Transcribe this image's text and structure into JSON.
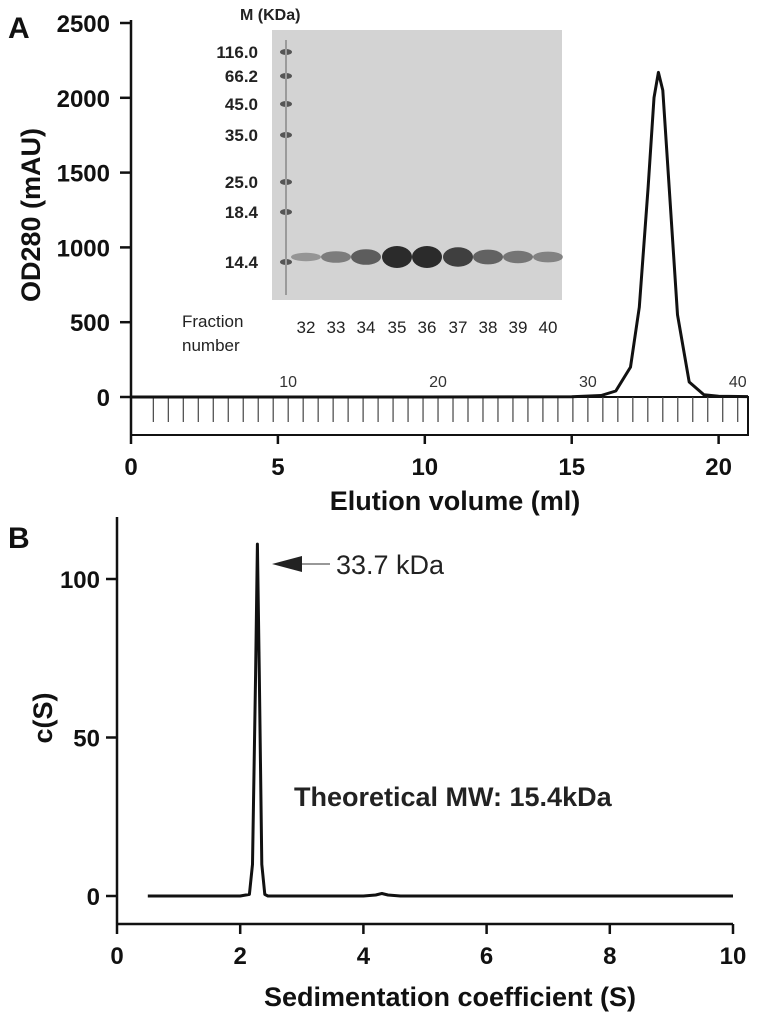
{
  "chart_data": [
    {
      "type": "line",
      "panel_label": "A",
      "xlabel": "Elution volume (ml)",
      "ylabel": "OD280 (mAU)",
      "xlim": [
        0,
        21
      ],
      "ylim": [
        0,
        2500
      ],
      "xticks": [
        "0",
        "5",
        "10",
        "15",
        "20"
      ],
      "yticks": [
        "0",
        "500",
        "1000",
        "1500",
        "2000",
        "2500"
      ],
      "fraction_axis_labels": [
        "10",
        "20",
        "30",
        "40"
      ],
      "series": [
        {
          "x": [
            0,
            10,
            15,
            16,
            16.5,
            17,
            17.3,
            17.6,
            17.8,
            17.95,
            18.1,
            18.3,
            18.6,
            19,
            19.5,
            20,
            21
          ],
          "y": [
            0,
            0,
            2,
            10,
            40,
            200,
            600,
            1400,
            2000,
            2170,
            2050,
            1450,
            550,
            100,
            15,
            5,
            3
          ]
        }
      ],
      "inset_gel": {
        "title": "M (KDa)",
        "markers": [
          "116.0",
          "66.2",
          "45.0",
          "35.0",
          "25.0",
          "18.4",
          "14.4"
        ],
        "fraction_label_line1": "Fraction",
        "fraction_label_line2": "number",
        "fractions": [
          "32",
          "33",
          "34",
          "35",
          "36",
          "37",
          "38",
          "39",
          "40"
        ]
      }
    },
    {
      "type": "line",
      "panel_label": "B",
      "xlabel": "Sedimentation coefficient (S)",
      "ylabel": "c(S)",
      "xlim": [
        0,
        10
      ],
      "ylim": [
        0,
        120
      ],
      "xticks": [
        "0",
        "2",
        "4",
        "6",
        "8",
        "10"
      ],
      "yticks": [
        "0",
        "50",
        "100"
      ],
      "annotations": {
        "peak": "33.7 kDa",
        "theoretical": "Theoretical MW: 15.4kDa"
      },
      "series": [
        {
          "x": [
            0.5,
            2.0,
            2.15,
            2.2,
            2.25,
            2.28,
            2.31,
            2.35,
            2.4,
            2.45,
            4.0,
            4.2,
            4.3,
            4.4,
            4.6,
            6,
            8,
            10
          ],
          "y": [
            0,
            0,
            0.5,
            10,
            70,
            111,
            70,
            10,
            0.5,
            0,
            0,
            0.3,
            0.8,
            0.3,
            0,
            0,
            0,
            0
          ]
        }
      ]
    }
  ]
}
